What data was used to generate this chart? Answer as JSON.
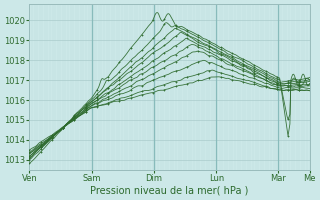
{
  "title": "",
  "xlabel": "Pression niveau de la mer( hPa )",
  "ylabel": "",
  "bg_color": "#cce8e8",
  "grid_major_color": "#aacccc",
  "grid_minor_color": "#bbdddd",
  "line_color": "#2d6a2d",
  "ylim": [
    1012.5,
    1020.8
  ],
  "yticks": [
    1013,
    1014,
    1015,
    1016,
    1017,
    1018,
    1019,
    1020
  ],
  "day_labels": [
    "Ven",
    "Sam",
    "Dim",
    "Lun",
    "Mar",
    "Me"
  ],
  "day_positions": [
    0.0,
    0.222,
    0.444,
    0.667,
    0.889,
    1.0
  ],
  "xlabel_fontsize": 7,
  "tick_fontsize": 6
}
